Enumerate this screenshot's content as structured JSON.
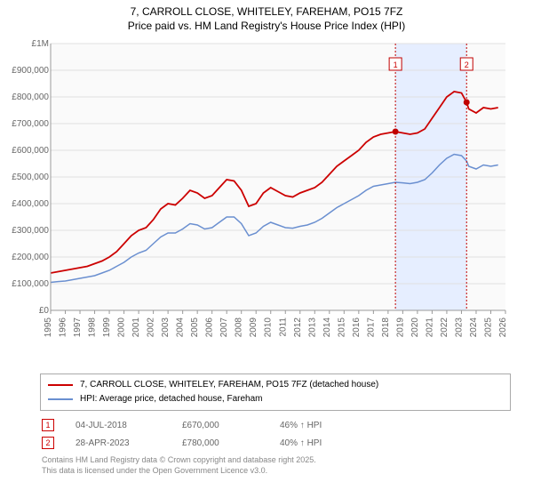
{
  "title_line1": "7, CARROLL CLOSE, WHITELEY, FAREHAM, PO15 7FZ",
  "title_line2": "Price paid vs. HM Land Registry's House Price Index (HPI)",
  "chart": {
    "type": "line",
    "background_color": "#fafafa",
    "grid_color": "#e0e0e0",
    "highlight_color": "#e6eeff",
    "series1_color": "#cc0000",
    "series2_color": "#6a8fd0",
    "marker_color": "#c00000",
    "y": {
      "min": 0,
      "max": 1000000,
      "tick_step": 100000,
      "labels": [
        "£0",
        "£100,000",
        "£200,000",
        "£300,000",
        "£400,000",
        "£500,000",
        "£600,000",
        "£700,000",
        "£800,000",
        "£900,000",
        "£1M"
      ],
      "label_fontsize": 10
    },
    "x": {
      "min": 1995,
      "max": 2026,
      "years": [
        1995,
        1996,
        1997,
        1998,
        1999,
        2000,
        2001,
        2002,
        2003,
        2004,
        2005,
        2006,
        2007,
        2008,
        2009,
        2010,
        2011,
        2012,
        2013,
        2014,
        2015,
        2016,
        2017,
        2018,
        2019,
        2020,
        2021,
        2022,
        2023,
        2024,
        2025,
        2026
      ],
      "label_fontsize": 10
    },
    "highlight_span": {
      "from": 2018.5,
      "to": 2023.35
    },
    "series1_name": "7, CARROLL CLOSE, WHITELEY, FAREHAM, PO15 7FZ (detached house)",
    "series2_name": "HPI: Average price, detached house, Fareham",
    "series1": [
      [
        1995,
        140000
      ],
      [
        1995.5,
        145000
      ],
      [
        1996,
        150000
      ],
      [
        1996.5,
        155000
      ],
      [
        1997,
        160000
      ],
      [
        1997.5,
        165000
      ],
      [
        1998,
        175000
      ],
      [
        1998.5,
        185000
      ],
      [
        1999,
        200000
      ],
      [
        1999.5,
        220000
      ],
      [
        2000,
        250000
      ],
      [
        2000.5,
        280000
      ],
      [
        2001,
        300000
      ],
      [
        2001.5,
        310000
      ],
      [
        2002,
        340000
      ],
      [
        2002.5,
        380000
      ],
      [
        2003,
        400000
      ],
      [
        2003.5,
        395000
      ],
      [
        2004,
        420000
      ],
      [
        2004.5,
        450000
      ],
      [
        2005,
        440000
      ],
      [
        2005.5,
        420000
      ],
      [
        2006,
        430000
      ],
      [
        2006.5,
        460000
      ],
      [
        2007,
        490000
      ],
      [
        2007.5,
        485000
      ],
      [
        2008,
        450000
      ],
      [
        2008.5,
        390000
      ],
      [
        2009,
        400000
      ],
      [
        2009.5,
        440000
      ],
      [
        2010,
        460000
      ],
      [
        2010.5,
        445000
      ],
      [
        2011,
        430000
      ],
      [
        2011.5,
        425000
      ],
      [
        2012,
        440000
      ],
      [
        2012.5,
        450000
      ],
      [
        2013,
        460000
      ],
      [
        2013.5,
        480000
      ],
      [
        2014,
        510000
      ],
      [
        2014.5,
        540000
      ],
      [
        2015,
        560000
      ],
      [
        2015.5,
        580000
      ],
      [
        2016,
        600000
      ],
      [
        2016.5,
        630000
      ],
      [
        2017,
        650000
      ],
      [
        2017.5,
        660000
      ],
      [
        2018,
        665000
      ],
      [
        2018.5,
        670000
      ],
      [
        2019,
        665000
      ],
      [
        2019.5,
        660000
      ],
      [
        2020,
        665000
      ],
      [
        2020.5,
        680000
      ],
      [
        2021,
        720000
      ],
      [
        2021.5,
        760000
      ],
      [
        2022,
        800000
      ],
      [
        2022.5,
        820000
      ],
      [
        2023,
        815000
      ],
      [
        2023.35,
        780000
      ],
      [
        2023.5,
        755000
      ],
      [
        2024,
        740000
      ],
      [
        2024.5,
        760000
      ],
      [
        2025,
        755000
      ],
      [
        2025.5,
        760000
      ]
    ],
    "series2": [
      [
        1995,
        105000
      ],
      [
        1995.5,
        108000
      ],
      [
        1996,
        110000
      ],
      [
        1996.5,
        115000
      ],
      [
        1997,
        120000
      ],
      [
        1997.5,
        125000
      ],
      [
        1998,
        130000
      ],
      [
        1998.5,
        140000
      ],
      [
        1999,
        150000
      ],
      [
        1999.5,
        165000
      ],
      [
        2000,
        180000
      ],
      [
        2000.5,
        200000
      ],
      [
        2001,
        215000
      ],
      [
        2001.5,
        225000
      ],
      [
        2002,
        250000
      ],
      [
        2002.5,
        275000
      ],
      [
        2003,
        290000
      ],
      [
        2003.5,
        290000
      ],
      [
        2004,
        305000
      ],
      [
        2004.5,
        325000
      ],
      [
        2005,
        320000
      ],
      [
        2005.5,
        305000
      ],
      [
        2006,
        310000
      ],
      [
        2006.5,
        330000
      ],
      [
        2007,
        350000
      ],
      [
        2007.5,
        350000
      ],
      [
        2008,
        325000
      ],
      [
        2008.5,
        280000
      ],
      [
        2009,
        290000
      ],
      [
        2009.5,
        315000
      ],
      [
        2010,
        330000
      ],
      [
        2010.5,
        320000
      ],
      [
        2011,
        310000
      ],
      [
        2011.5,
        308000
      ],
      [
        2012,
        315000
      ],
      [
        2012.5,
        320000
      ],
      [
        2013,
        330000
      ],
      [
        2013.5,
        345000
      ],
      [
        2014,
        365000
      ],
      [
        2014.5,
        385000
      ],
      [
        2015,
        400000
      ],
      [
        2015.5,
        415000
      ],
      [
        2016,
        430000
      ],
      [
        2016.5,
        450000
      ],
      [
        2017,
        465000
      ],
      [
        2017.5,
        470000
      ],
      [
        2018,
        475000
      ],
      [
        2018.5,
        480000
      ],
      [
        2019,
        478000
      ],
      [
        2019.5,
        475000
      ],
      [
        2020,
        480000
      ],
      [
        2020.5,
        490000
      ],
      [
        2021,
        515000
      ],
      [
        2021.5,
        545000
      ],
      [
        2022,
        570000
      ],
      [
        2022.5,
        585000
      ],
      [
        2023,
        580000
      ],
      [
        2023.35,
        560000
      ],
      [
        2023.5,
        540000
      ],
      [
        2024,
        530000
      ],
      [
        2024.5,
        545000
      ],
      [
        2025,
        540000
      ],
      [
        2025.5,
        545000
      ]
    ],
    "markers": [
      {
        "idx": "1",
        "year": 2018.5,
        "value": 670000
      },
      {
        "idx": "2",
        "year": 2023.35,
        "value": 780000
      }
    ]
  },
  "legend": {
    "series1_label": "7, CARROLL CLOSE, WHITELEY, FAREHAM, PO15 7FZ (detached house)",
    "series2_label": "HPI: Average price, detached house, Fareham"
  },
  "sales": [
    {
      "idx": "1",
      "date": "04-JUL-2018",
      "price": "£670,000",
      "pct": "46% ↑ HPI"
    },
    {
      "idx": "2",
      "date": "28-APR-2023",
      "price": "£780,000",
      "pct": "40% ↑ HPI"
    }
  ],
  "footer_line1": "Contains HM Land Registry data © Crown copyright and database right 2025.",
  "footer_line2": "This data is licensed under the Open Government Licence v3.0."
}
